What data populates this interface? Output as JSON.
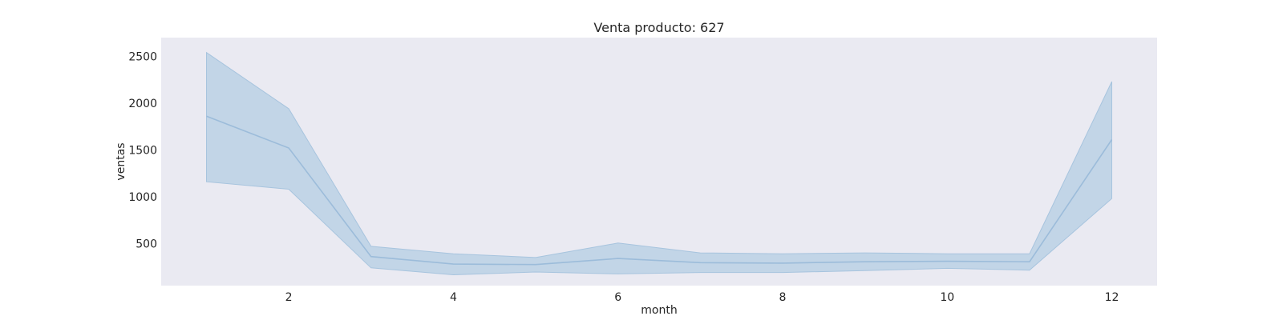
{
  "chart_data": {
    "type": "area",
    "title": "Venta producto: 627",
    "xlabel": "month",
    "ylabel": "ventas",
    "xlim": [
      0.45,
      12.55
    ],
    "ylim": [
      50,
      2700
    ],
    "xticks": [
      2,
      4,
      6,
      8,
      10,
      12
    ],
    "yticks": [
      500,
      1000,
      1500,
      2000,
      2500
    ],
    "grid": false,
    "colors": {
      "plot_background": "#eaeaf2",
      "line": "#9cbcda",
      "band_fill": "#b4cde3",
      "band_edge": "#a7c4de"
    },
    "series": [
      {
        "x": [
          1,
          2,
          3,
          4,
          5,
          6,
          7,
          8,
          9,
          10,
          11,
          12
        ],
        "mean": [
          1860,
          1520,
          360,
          280,
          275,
          340,
          295,
          290,
          305,
          310,
          305,
          1610
        ],
        "lower": [
          1160,
          1080,
          240,
          165,
          195,
          175,
          190,
          190,
          210,
          235,
          215,
          980
        ],
        "upper": [
          2540,
          1940,
          470,
          390,
          350,
          505,
          400,
          390,
          400,
          390,
          390,
          2230
        ]
      }
    ]
  }
}
